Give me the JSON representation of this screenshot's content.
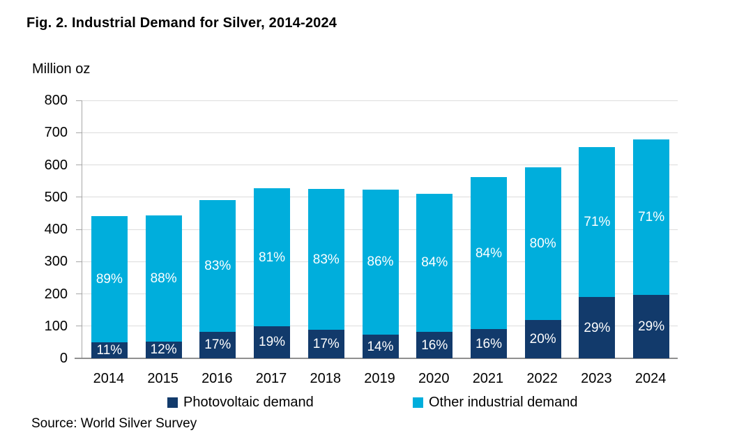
{
  "figure": {
    "title": "Fig. 2. Industrial Demand for Silver, 2014-2024",
    "unit_label": "Million oz",
    "source": "Source: World Silver Survey"
  },
  "legend": {
    "items": [
      {
        "label": "Photovoltaic demand",
        "color": "#123A6B"
      },
      {
        "label": "Other industrial demand",
        "color": "#00AEDC"
      }
    ]
  },
  "chart_data": {
    "type": "bar",
    "stacked": true,
    "title": "Fig. 2. Industrial Demand for Silver, 2014-2024",
    "ylabel": "Million oz",
    "xlabel": "",
    "categories": [
      "2014",
      "2015",
      "2016",
      "2017",
      "2018",
      "2019",
      "2020",
      "2021",
      "2022",
      "2023",
      "2024"
    ],
    "series": [
      {
        "name": "Photovoltaic demand",
        "color": "#123A6B",
        "values": [
          49,
          53,
          83,
          100,
          89,
          73,
          82,
          90,
          118,
          190,
          197
        ],
        "labels": [
          "11%",
          "12%",
          "17%",
          "19%",
          "17%",
          "14%",
          "16%",
          "16%",
          "20%",
          "29%",
          "29%"
        ]
      },
      {
        "name": "Other industrial demand",
        "color": "#00AEDC",
        "values": [
          392,
          390,
          407,
          427,
          436,
          451,
          429,
          473,
          474,
          466,
          483
        ],
        "labels": [
          "89%",
          "88%",
          "83%",
          "81%",
          "83%",
          "86%",
          "84%",
          "84%",
          "80%",
          "71%",
          "71%"
        ]
      }
    ],
    "totals": [
      441,
      443,
      490,
      527,
      525,
      524,
      511,
      563,
      592,
      656,
      680
    ],
    "ylim": [
      0,
      800
    ],
    "yticks": [
      0,
      100,
      200,
      300,
      400,
      500,
      600,
      700,
      800
    ],
    "grid": true,
    "legend_position": "bottom",
    "bar_label_color": "#ffffff"
  },
  "colors": {
    "gridline": "#DCDCDC",
    "axis": "#A6A6A6",
    "background": "#ffffff"
  }
}
